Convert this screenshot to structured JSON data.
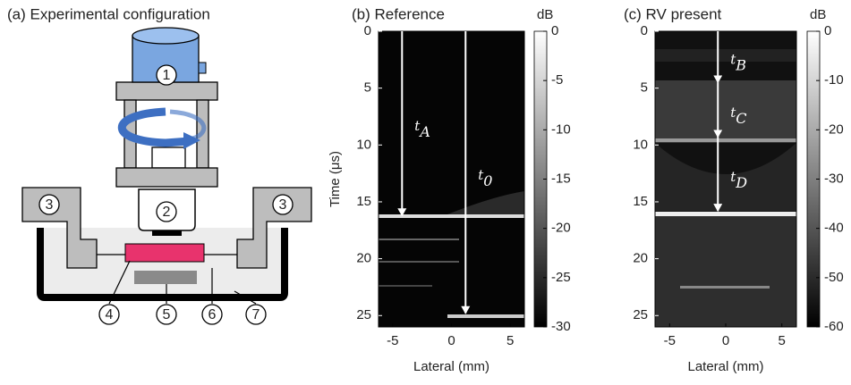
{
  "panel_a": {
    "title": "(a) Experimental configuration",
    "labels": [
      "1",
      "2",
      "3",
      "3",
      "4",
      "5",
      "6",
      "7"
    ]
  },
  "panels": [
    {
      "title": "(b) Reference",
      "xlabel": "Lateral (mm)",
      "ylabel": "Time (μs)",
      "xlim": [
        -6.2,
        6.2
      ],
      "xticks": [
        -5,
        0,
        5
      ],
      "ylim": [
        0,
        26
      ],
      "yticks": [
        0,
        5,
        10,
        15,
        20,
        25
      ],
      "colorbar": {
        "label": "dB",
        "lim": [
          -30,
          0
        ],
        "ticks": [
          0,
          -5,
          -10,
          -15,
          -20,
          -25,
          -30
        ]
      },
      "arrows": [
        {
          "base": "t",
          "sub": "A",
          "x": -4.2,
          "y": [
            0,
            16.2
          ]
        },
        {
          "base": "t",
          "sub": "0",
          "x": 1.2,
          "y": [
            0,
            24.8
          ]
        }
      ]
    },
    {
      "title": "(c) RV present",
      "xlabel": "Lateral (mm)",
      "xlim": [
        -6.3,
        6.3
      ],
      "xticks": [
        -5,
        0,
        5
      ],
      "ylim": [
        0,
        26
      ],
      "yticks": [
        0,
        5,
        10,
        15,
        20,
        25
      ],
      "colorbar": {
        "label": "dB",
        "lim": [
          -60,
          0
        ],
        "ticks": [
          0,
          -10,
          -20,
          -30,
          -40,
          -50,
          -60
        ]
      },
      "arrows": [
        {
          "base": "t",
          "sub": "B",
          "x": -0.7,
          "y": [
            0,
            4.5
          ]
        },
        {
          "base": "t",
          "sub": "C",
          "x": -0.7,
          "y": [
            4.5,
            9.3
          ]
        },
        {
          "base": "t",
          "sub": "D",
          "x": -0.7,
          "y": [
            9.3,
            15.8
          ]
        }
      ]
    }
  ]
}
